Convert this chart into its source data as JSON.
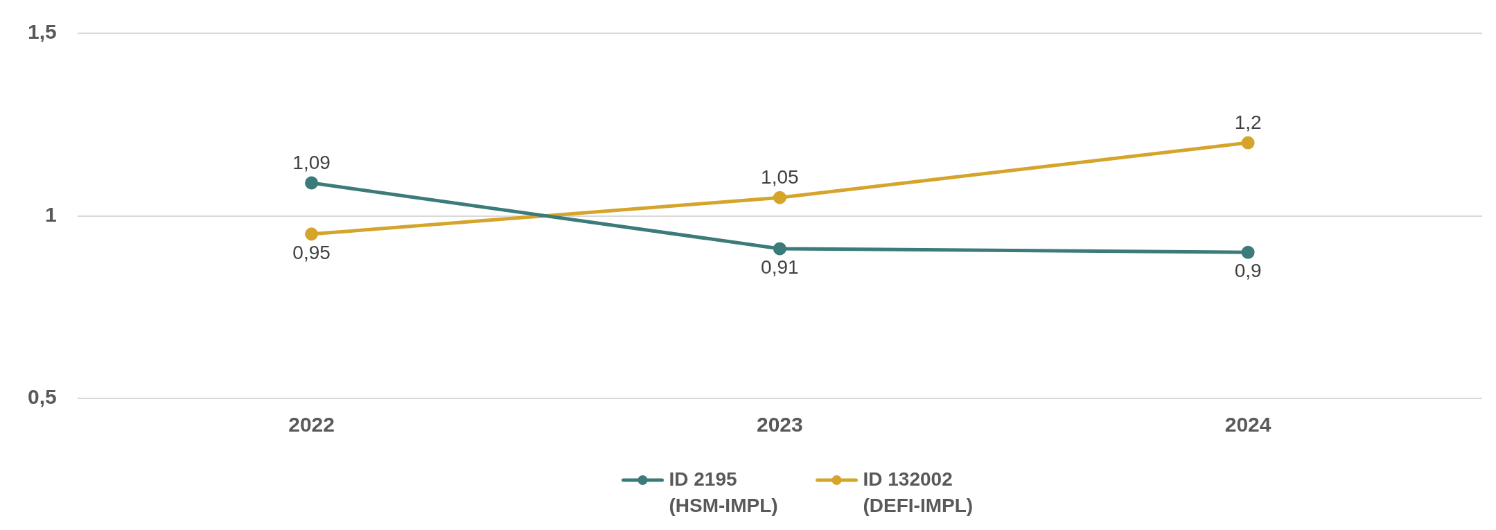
{
  "chart_data": {
    "type": "line",
    "categories": [
      "2022",
      "2023",
      "2024"
    ],
    "series": [
      {
        "name": "ID 2195 (HSM-IMPL)",
        "color": "#3b7b79",
        "values": [
          1.09,
          0.91,
          0.9
        ],
        "value_labels": [
          "1,09",
          "0,91",
          "0,9"
        ]
      },
      {
        "name": "ID 132002 (DEFI-IMPL)",
        "color": "#d5a42b",
        "values": [
          0.95,
          1.05,
          1.2
        ],
        "value_labels": [
          "0,95",
          "1,05",
          "1,2"
        ]
      }
    ],
    "ylim": [
      0.5,
      1.5
    ],
    "yticks": [
      {
        "value": 0.5,
        "label": "0,5"
      },
      {
        "value": 1,
        "label": "1"
      },
      {
        "value": 1.5,
        "label": "1,5"
      }
    ],
    "grid": "y",
    "legend": "bottom",
    "marker": "circle",
    "line_style": "solid"
  }
}
